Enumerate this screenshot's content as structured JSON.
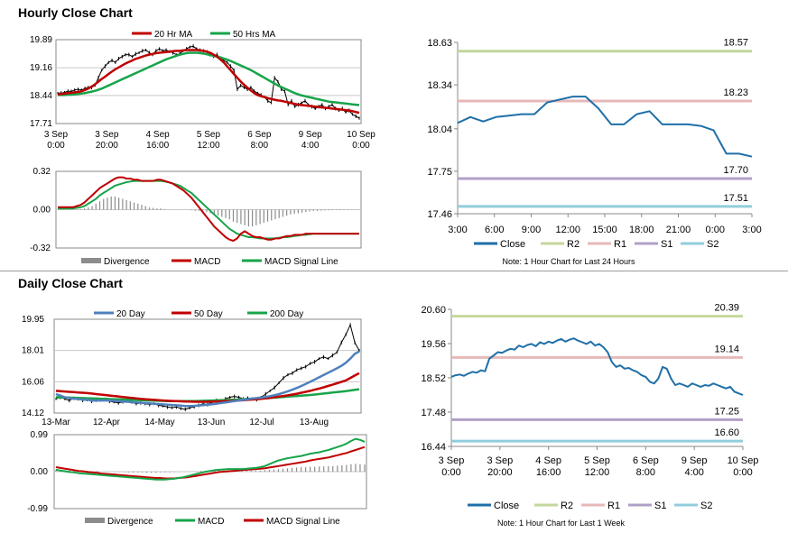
{
  "titles": {
    "hourly": "Hourly Close Chart",
    "daily": "Daily Close Chart"
  },
  "colors": {
    "black": "#000000",
    "red": "#c00000",
    "green": "#17a44a",
    "blue": "#4f81bd",
    "grey": "#8c8c8c",
    "line_blue": "#1f6fa8",
    "r2": "#c4d79b",
    "r1": "#e6b9b8",
    "s1": "#b1a0c7",
    "s2": "#92cddc"
  },
  "chart_data": [
    {
      "id": "hourly_price",
      "type": "line",
      "legend": [
        "20 Hr MA",
        "50 Hrs MA"
      ],
      "yticks": [
        "19.89",
        "19.16",
        "18.44",
        "17.71"
      ],
      "ylim": [
        17.71,
        19.89
      ],
      "xlabels": [
        [
          "3 Sep",
          "0:00"
        ],
        [
          "3 Sep",
          "20:00"
        ],
        [
          "4 Sep",
          "16:00"
        ],
        [
          "5 Sep",
          "12:00"
        ],
        [
          "6 Sep",
          "8:00"
        ],
        [
          "9 Sep",
          "4:00"
        ],
        [
          "10 Sep",
          "0:00"
        ]
      ],
      "close": [
        18.5,
        18.5,
        18.52,
        18.55,
        18.55,
        18.58,
        18.6,
        18.58,
        18.62,
        18.65,
        18.65,
        18.7,
        18.9,
        19.1,
        19.2,
        19.3,
        19.35,
        19.3,
        19.4,
        19.45,
        19.5,
        19.5,
        19.45,
        19.52,
        19.55,
        19.6,
        19.62,
        19.55,
        19.5,
        19.6,
        19.65,
        19.6,
        19.62,
        19.58,
        19.55,
        19.5,
        19.52,
        19.6,
        19.65,
        19.7,
        19.72,
        19.65,
        19.62,
        19.6,
        19.58,
        19.5,
        19.45,
        19.5,
        19.4,
        19.35,
        19.3,
        19.2,
        19.1,
        18.6,
        18.7,
        18.65,
        18.6,
        18.65,
        18.55,
        18.5,
        18.45,
        18.4,
        18.3,
        18.25,
        18.9,
        18.8,
        18.6,
        18.55,
        18.2,
        18.3,
        18.15,
        18.2,
        18.25,
        18.3,
        18.2,
        18.15,
        18.1,
        18.15,
        18.2,
        18.1,
        18.15,
        18.2,
        18.1,
        18.05,
        18.1,
        18.0,
        18.05,
        17.95,
        17.9,
        17.85
      ],
      "ma20": [
        18.47,
        18.48,
        18.49,
        18.5,
        18.51,
        18.52,
        18.53,
        18.55,
        18.58,
        18.62,
        18.67,
        18.73,
        18.8,
        18.87,
        18.93,
        19.0,
        19.06,
        19.12,
        19.17,
        19.22,
        19.27,
        19.31,
        19.35,
        19.39,
        19.42,
        19.45,
        19.48,
        19.5,
        19.52,
        19.54,
        19.55,
        19.56,
        19.57,
        19.58,
        19.59,
        19.6,
        19.6,
        19.61,
        19.62,
        19.62,
        19.62,
        19.62,
        19.61,
        19.6,
        19.58,
        19.55,
        19.5,
        19.45,
        19.38,
        19.3,
        19.2,
        19.1,
        19.0,
        18.9,
        18.8,
        18.72,
        18.64,
        18.57,
        18.5,
        18.45,
        18.42,
        18.4,
        18.37,
        18.35,
        18.33,
        18.31,
        18.3,
        18.28,
        18.26,
        18.24,
        18.22,
        18.2,
        18.19,
        18.18,
        18.17,
        18.16,
        18.15,
        18.14,
        18.13,
        18.12,
        18.11,
        18.1,
        18.09,
        18.08,
        18.07,
        18.06,
        18.05,
        18.03,
        18.01,
        17.99
      ],
      "ma50": [
        18.45,
        18.45,
        18.45,
        18.46,
        18.46,
        18.47,
        18.48,
        18.49,
        18.5,
        18.52,
        18.54,
        18.56,
        18.59,
        18.62,
        18.66,
        18.7,
        18.74,
        18.78,
        18.82,
        18.86,
        18.9,
        18.94,
        18.98,
        19.02,
        19.06,
        19.1,
        19.14,
        19.18,
        19.22,
        19.26,
        19.3,
        19.34,
        19.38,
        19.41,
        19.44,
        19.47,
        19.5,
        19.52,
        19.54,
        19.55,
        19.55,
        19.55,
        19.54,
        19.53,
        19.51,
        19.49,
        19.47,
        19.45,
        19.43,
        19.4,
        19.37,
        19.34,
        19.3,
        19.26,
        19.22,
        19.18,
        19.14,
        19.1,
        19.05,
        19.0,
        18.95,
        18.9,
        18.85,
        18.8,
        18.75,
        18.7,
        18.66,
        18.62,
        18.58,
        18.54,
        18.5,
        18.47,
        18.44,
        18.42,
        18.4,
        18.38,
        18.36,
        18.34,
        18.32,
        18.3,
        18.28,
        18.27,
        18.26,
        18.25,
        18.24,
        18.23,
        18.22,
        18.21,
        18.2,
        18.19
      ]
    },
    {
      "id": "hourly_macd",
      "type": "bar+line",
      "legend": [
        "Divergence",
        "MACD",
        "MACD Signal Line"
      ],
      "yticks": [
        "0.32",
        "0.00",
        "-0.32"
      ],
      "ylim": [
        -0.32,
        0.32
      ],
      "divergence": [
        0,
        0,
        0,
        0,
        0,
        0,
        0.005,
        0.01,
        0.02,
        0.03,
        0.05,
        0.07,
        0.09,
        0.1,
        0.11,
        0.11,
        0.1,
        0.09,
        0.08,
        0.07,
        0.06,
        0.05,
        0.04,
        0.03,
        0.02,
        0.015,
        0.01,
        0.01,
        0.005,
        0,
        0,
        0,
        0,
        0,
        0,
        -0.005,
        -0.01,
        -0.01,
        -0.015,
        -0.02,
        -0.03,
        -0.04,
        -0.05,
        -0.06,
        -0.07,
        -0.08,
        -0.1,
        -0.11,
        -0.12,
        -0.13,
        -0.14,
        -0.14,
        -0.13,
        -0.12,
        -0.11,
        -0.1,
        -0.09,
        -0.08,
        -0.07,
        -0.06,
        -0.05,
        -0.04,
        -0.035,
        -0.03,
        -0.025,
        -0.02,
        -0.015,
        -0.01,
        -0.01,
        -0.008,
        -0.006,
        -0.005,
        -0.004,
        -0.004,
        -0.003,
        -0.003,
        -0.002,
        -0.002,
        -0.002,
        -0.002
      ],
      "macd": [
        0.02,
        0.02,
        0.02,
        0.02,
        0.02,
        0.03,
        0.04,
        0.06,
        0.09,
        0.12,
        0.15,
        0.18,
        0.2,
        0.22,
        0.24,
        0.26,
        0.27,
        0.27,
        0.26,
        0.26,
        0.25,
        0.25,
        0.24,
        0.24,
        0.24,
        0.24,
        0.25,
        0.25,
        0.24,
        0.23,
        0.22,
        0.2,
        0.18,
        0.16,
        0.13,
        0.1,
        0.06,
        0.02,
        -0.02,
        -0.06,
        -0.1,
        -0.14,
        -0.17,
        -0.2,
        -0.23,
        -0.25,
        -0.26,
        -0.24,
        -0.2,
        -0.18,
        -0.2,
        -0.22,
        -0.23,
        -0.23,
        -0.24,
        -0.25,
        -0.25,
        -0.24,
        -0.24,
        -0.23,
        -0.22,
        -0.22,
        -0.21,
        -0.21,
        -0.21,
        -0.2,
        -0.2,
        -0.2,
        -0.2,
        -0.2,
        -0.2,
        -0.2,
        -0.2,
        -0.2,
        -0.2,
        -0.2,
        -0.2,
        -0.2,
        -0.2,
        -0.2
      ],
      "signal": [
        0.01,
        0.01,
        0.01,
        0.01,
        0.01,
        0.015,
        0.02,
        0.03,
        0.05,
        0.07,
        0.09,
        0.12,
        0.14,
        0.16,
        0.18,
        0.2,
        0.21,
        0.22,
        0.23,
        0.235,
        0.24,
        0.24,
        0.24,
        0.24,
        0.24,
        0.24,
        0.24,
        0.24,
        0.235,
        0.23,
        0.22,
        0.21,
        0.2,
        0.18,
        0.16,
        0.14,
        0.11,
        0.08,
        0.05,
        0.02,
        -0.01,
        -0.04,
        -0.07,
        -0.1,
        -0.13,
        -0.16,
        -0.18,
        -0.2,
        -0.21,
        -0.22,
        -0.23,
        -0.23,
        -0.235,
        -0.24,
        -0.24,
        -0.24,
        -0.24,
        -0.24,
        -0.235,
        -0.23,
        -0.23,
        -0.225,
        -0.22,
        -0.215,
        -0.21,
        -0.21,
        -0.205,
        -0.2,
        -0.2,
        -0.2,
        -0.2,
        -0.2,
        -0.2,
        -0.2,
        -0.2,
        -0.2,
        -0.2,
        -0.2,
        -0.2,
        -0.2
      ]
    },
    {
      "id": "hourly_levels",
      "type": "line",
      "title_note": "Note: 1 Hour Chart for Last 24 Hours",
      "legend": [
        "Close",
        "R2",
        "R1",
        "S1",
        "S2"
      ],
      "yticks": [
        "18.63",
        "18.34",
        "18.04",
        "17.75",
        "17.46"
      ],
      "ylim": [
        17.46,
        18.63
      ],
      "xlabels": [
        "3:00",
        "6:00",
        "9:00",
        "12:00",
        "15:00",
        "18:00",
        "21:00",
        "0:00",
        "3:00"
      ],
      "close": [
        18.08,
        18.12,
        18.09,
        18.12,
        18.13,
        18.14,
        18.14,
        18.22,
        18.24,
        18.26,
        18.26,
        18.18,
        18.07,
        18.07,
        18.14,
        18.16,
        18.07,
        18.07,
        18.07,
        18.06,
        18.03,
        17.87,
        17.87,
        17.85
      ],
      "levels": {
        "R2": 18.57,
        "R1": 18.23,
        "S1": 17.7,
        "S2": 17.51
      },
      "level_labels": [
        "18.57",
        "18.23",
        "17.70",
        "17.51"
      ]
    },
    {
      "id": "daily_price",
      "type": "line",
      "legend": [
        "20 Day",
        "50 Day",
        "200 Day"
      ],
      "yticks": [
        "19.95",
        "18.01",
        "16.06",
        "14.12"
      ],
      "ylim": [
        14.12,
        19.95
      ],
      "xlabels": [
        "13-Mar",
        "12-Apr",
        "14-May",
        "13-Jun",
        "12-Jul",
        "13-Aug"
      ],
      "close": [
        15.0,
        15.1,
        15.0,
        14.9,
        15.05,
        15.0,
        14.9,
        14.95,
        14.85,
        14.9,
        14.95,
        15.0,
        14.85,
        14.8,
        14.75,
        14.8,
        14.9,
        14.8,
        14.7,
        14.75,
        14.7,
        14.65,
        14.7,
        14.6,
        14.55,
        14.5,
        14.45,
        14.5,
        14.4,
        14.35,
        14.45,
        14.5,
        14.6,
        14.7,
        14.65,
        14.8,
        14.9,
        14.85,
        15.0,
        15.1,
        15.15,
        15.1,
        15.0,
        15.05,
        15.0,
        14.95,
        15.1,
        15.3,
        15.5,
        15.7,
        16.0,
        16.3,
        16.5,
        16.6,
        16.8,
        16.9,
        17.0,
        17.2,
        17.3,
        17.5,
        17.6,
        17.5,
        17.7,
        17.9,
        18.5,
        19.0,
        19.6,
        18.5,
        18.0
      ],
      "ma20": [
        15.3,
        15.2,
        15.1,
        15.05,
        15.0,
        15.0,
        14.95,
        14.95,
        14.9,
        14.9,
        14.9,
        14.9,
        14.9,
        14.88,
        14.86,
        14.84,
        14.82,
        14.8,
        14.78,
        14.76,
        14.74,
        14.72,
        14.7,
        14.68,
        14.66,
        14.64,
        14.62,
        14.6,
        14.58,
        14.56,
        14.56,
        14.57,
        14.59,
        14.61,
        14.64,
        14.67,
        14.7,
        14.74,
        14.78,
        14.82,
        14.86,
        14.9,
        14.94,
        14.98,
        15.02,
        15.05,
        15.08,
        15.12,
        15.17,
        15.23,
        15.3,
        15.38,
        15.47,
        15.57,
        15.68,
        15.8,
        15.93,
        16.06,
        16.2,
        16.34,
        16.48,
        16.62,
        16.76,
        16.9,
        17.05,
        17.25,
        17.5,
        17.8,
        17.95
      ],
      "ma50": [
        15.5,
        15.48,
        15.46,
        15.44,
        15.42,
        15.4,
        15.38,
        15.36,
        15.33,
        15.3,
        15.27,
        15.24,
        15.21,
        15.18,
        15.15,
        15.12,
        15.09,
        15.06,
        15.03,
        15.0,
        14.98,
        14.96,
        14.94,
        14.92,
        14.9,
        14.88,
        14.87,
        14.86,
        14.85,
        14.84,
        14.83,
        14.82,
        14.82,
        14.82,
        14.82,
        14.83,
        14.84,
        14.85,
        14.86,
        14.87,
        14.88,
        14.9,
        14.92,
        14.94,
        14.96,
        14.98,
        15.0,
        15.03,
        15.06,
        15.1,
        15.14,
        15.18,
        15.22,
        15.27,
        15.32,
        15.38,
        15.44,
        15.5,
        15.57,
        15.64,
        15.72,
        15.8,
        15.88,
        15.97,
        16.06,
        16.15,
        16.3,
        16.45,
        16.6
      ],
      "ma200": [
        15.1,
        15.1,
        15.09,
        15.08,
        15.07,
        15.06,
        15.05,
        15.04,
        15.03,
        15.02,
        15.01,
        15.0,
        14.99,
        14.98,
        14.97,
        14.96,
        14.95,
        14.94,
        14.93,
        14.92,
        14.91,
        14.9,
        14.89,
        14.88,
        14.87,
        14.86,
        14.86,
        14.86,
        14.86,
        14.86,
        14.86,
        14.86,
        14.87,
        14.88,
        14.89,
        14.9,
        14.91,
        14.92,
        14.93,
        14.94,
        14.95,
        14.96,
        14.97,
        14.98,
        14.99,
        15.0,
        15.02,
        15.04,
        15.06,
        15.08,
        15.1,
        15.12,
        15.14,
        15.16,
        15.18,
        15.2,
        15.22,
        15.24,
        15.27,
        15.3,
        15.33,
        15.36,
        15.39,
        15.42,
        15.45,
        15.48,
        15.52,
        15.56,
        15.6
      ]
    },
    {
      "id": "daily_macd",
      "type": "bar+line",
      "legend": [
        "Divergence",
        "MACD",
        "MACD Signal Line"
      ],
      "yticks": [
        "0.99",
        "0.00",
        "-0.99"
      ],
      "ylim": [
        -0.99,
        0.99
      ],
      "divergence": [
        0.05,
        0.05,
        0.04,
        0.04,
        0.03,
        0.03,
        0.02,
        0.02,
        0.01,
        0.01,
        0,
        0,
        0,
        -0.01,
        -0.01,
        -0.01,
        -0.02,
        -0.02,
        -0.02,
        -0.02,
        -0.03,
        -0.03,
        -0.03,
        -0.02,
        -0.02,
        -0.02,
        -0.01,
        -0.01,
        0,
        0,
        0.01,
        0.01,
        0.02,
        0.02,
        0.03,
        0.03,
        0.03,
        0.04,
        0.04,
        0.04,
        0.04,
        0.04,
        0.04,
        0.03,
        0.03,
        0.03,
        0.04,
        0.05,
        0.06,
        0.07,
        0.08,
        0.09,
        0.1,
        0.11,
        0.12,
        0.12,
        0.13,
        0.13,
        0.14,
        0.14,
        0.15,
        0.15,
        0.16,
        0.17,
        0.18,
        0.2,
        0.21,
        0.2,
        0.19
      ],
      "macd": [
        0.05,
        0.03,
        0.01,
        -0.01,
        -0.02,
        -0.04,
        -0.05,
        -0.06,
        -0.07,
        -0.08,
        -0.09,
        -0.1,
        -0.11,
        -0.12,
        -0.13,
        -0.14,
        -0.15,
        -0.16,
        -0.17,
        -0.18,
        -0.19,
        -0.2,
        -0.21,
        -0.21,
        -0.21,
        -0.2,
        -0.19,
        -0.17,
        -0.15,
        -0.12,
        -0.09,
        -0.06,
        -0.03,
        0,
        0.02,
        0.04,
        0.05,
        0.06,
        0.07,
        0.07,
        0.07,
        0.07,
        0.08,
        0.09,
        0.1,
        0.12,
        0.15,
        0.2,
        0.25,
        0.3,
        0.33,
        0.36,
        0.38,
        0.4,
        0.42,
        0.45,
        0.48,
        0.5,
        0.52,
        0.55,
        0.58,
        0.62,
        0.66,
        0.7,
        0.75,
        0.82,
        0.88,
        0.85,
        0.8
      ],
      "signal": [
        0.12,
        0.1,
        0.08,
        0.06,
        0.04,
        0.02,
        0.01,
        -0.01,
        -0.02,
        -0.03,
        -0.05,
        -0.06,
        -0.07,
        -0.08,
        -0.09,
        -0.1,
        -0.11,
        -0.12,
        -0.13,
        -0.14,
        -0.15,
        -0.16,
        -0.17,
        -0.17,
        -0.18,
        -0.18,
        -0.18,
        -0.17,
        -0.16,
        -0.15,
        -0.13,
        -0.11,
        -0.09,
        -0.07,
        -0.05,
        -0.03,
        -0.01,
        0,
        0.01,
        0.02,
        0.03,
        0.04,
        0.05,
        0.06,
        0.07,
        0.08,
        0.09,
        0.11,
        0.13,
        0.15,
        0.17,
        0.19,
        0.21,
        0.23,
        0.25,
        0.27,
        0.3,
        0.32,
        0.34,
        0.36,
        0.38,
        0.41,
        0.44,
        0.47,
        0.5,
        0.54,
        0.58,
        0.62,
        0.66
      ]
    },
    {
      "id": "daily_levels",
      "type": "line",
      "title_note": "Note: 1 Hour Chart for Last 1 Week",
      "legend": [
        "Close",
        "R2",
        "R1",
        "S1",
        "S2"
      ],
      "yticks": [
        "20.60",
        "19.56",
        "18.52",
        "17.48",
        "16.44"
      ],
      "ylim": [
        16.44,
        20.6
      ],
      "xlabels": [
        [
          "3 Sep",
          "0:00"
        ],
        [
          "3 Sep",
          "20:00"
        ],
        [
          "4 Sep",
          "16:00"
        ],
        [
          "5 Sep",
          "12:00"
        ],
        [
          "6 Sep",
          "8:00"
        ],
        [
          "9 Sep",
          "4:00"
        ],
        [
          "10 Sep",
          "0:00"
        ]
      ],
      "close": [
        18.55,
        18.6,
        18.62,
        18.58,
        18.65,
        18.7,
        18.68,
        18.75,
        18.72,
        19.1,
        19.2,
        19.3,
        19.28,
        19.35,
        19.4,
        19.38,
        19.5,
        19.45,
        19.52,
        19.55,
        19.48,
        19.6,
        19.55,
        19.62,
        19.58,
        19.65,
        19.7,
        19.62,
        19.68,
        19.72,
        19.65,
        19.6,
        19.55,
        19.62,
        19.5,
        19.55,
        19.45,
        19.3,
        19.0,
        18.85,
        18.9,
        18.8,
        18.82,
        18.75,
        18.7,
        18.6,
        18.55,
        18.4,
        18.35,
        18.5,
        18.85,
        18.8,
        18.5,
        18.3,
        18.35,
        18.3,
        18.25,
        18.35,
        18.3,
        18.25,
        18.3,
        18.28,
        18.35,
        18.3,
        18.25,
        18.2,
        18.25,
        18.1,
        18.05,
        18.0
      ],
      "levels": {
        "R2": 20.39,
        "R1": 19.14,
        "S1": 17.25,
        "S2": 16.6
      },
      "level_labels": [
        "20.39",
        "19.14",
        "17.25",
        "16.60"
      ]
    }
  ]
}
